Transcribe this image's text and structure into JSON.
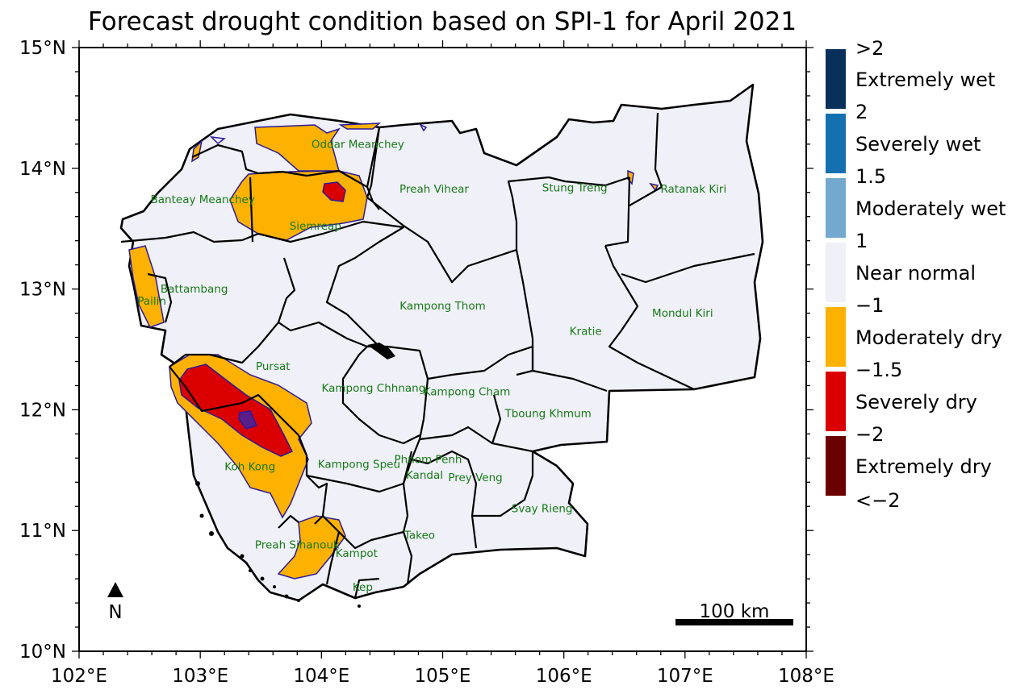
{
  "title": "Forecast drought condition based on SPI-1 for April 2021",
  "map": {
    "lon_range": [
      102,
      108
    ],
    "lat_range": [
      10,
      15
    ],
    "x_ticks": [
      "102°E",
      "103°E",
      "104°E",
      "105°E",
      "106°E",
      "107°E",
      "108°E"
    ],
    "y_ticks": [
      "10°N",
      "11°N",
      "12°N",
      "13°N",
      "14°N",
      "15°N"
    ],
    "north_label": "N",
    "scale_label": "100 km"
  },
  "provinces": [
    {
      "name": "Oddar Meanchey",
      "lon": 104.3,
      "lat": 14.17
    },
    {
      "name": "Banteay Meanchey",
      "lon": 103.02,
      "lat": 13.71
    },
    {
      "name": "Preah Vihear",
      "lon": 104.93,
      "lat": 13.8
    },
    {
      "name": "Stung Treng",
      "lon": 106.09,
      "lat": 13.81
    },
    {
      "name": "Ratanak Kiri",
      "lon": 107.07,
      "lat": 13.8
    },
    {
      "name": "Siemreap",
      "lon": 103.95,
      "lat": 13.49
    },
    {
      "name": "Battambang",
      "lon": 102.95,
      "lat": 12.97
    },
    {
      "name": "Pailin",
      "lon": 102.6,
      "lat": 12.87
    },
    {
      "name": "Kampong Thom",
      "lon": 105.0,
      "lat": 12.83
    },
    {
      "name": "Mondul Kiri",
      "lon": 106.98,
      "lat": 12.77
    },
    {
      "name": "Kratie",
      "lon": 106.18,
      "lat": 12.62
    },
    {
      "name": "Pursat",
      "lon": 103.6,
      "lat": 12.33
    },
    {
      "name": "Kampong Chhnang",
      "lon": 104.43,
      "lat": 12.15
    },
    {
      "name": "Kampong Cham",
      "lon": 105.2,
      "lat": 12.12
    },
    {
      "name": "Tboung Khmum",
      "lon": 105.87,
      "lat": 11.94
    },
    {
      "name": "Koh Kong",
      "lon": 103.41,
      "lat": 11.5
    },
    {
      "name": "Kampong Speu",
      "lon": 104.31,
      "lat": 11.52
    },
    {
      "name": "Phnom Penh",
      "lon": 104.88,
      "lat": 11.56
    },
    {
      "name": "Kandal",
      "lon": 104.85,
      "lat": 11.43
    },
    {
      "name": "Prey Veng",
      "lon": 105.27,
      "lat": 11.41
    },
    {
      "name": "Svay Rieng",
      "lon": 105.82,
      "lat": 11.15
    },
    {
      "name": "Takeo",
      "lon": 104.81,
      "lat": 10.93
    },
    {
      "name": "Preah Sihanouk",
      "lon": 103.8,
      "lat": 10.85
    },
    {
      "name": "Kampot",
      "lon": 104.29,
      "lat": 10.78
    },
    {
      "name": "Kep",
      "lon": 104.34,
      "lat": 10.5
    }
  ],
  "legend": {
    "bounds": [
      ">2",
      "2",
      "1.5",
      "1",
      "−1",
      "−1.5",
      "−2",
      "<−2"
    ],
    "classes": [
      {
        "name": "Extremely wet",
        "color": "#08305a"
      },
      {
        "name": "Severely wet",
        "color": "#1570b0"
      },
      {
        "name": "Moderately wet",
        "color": "#73a9cf"
      },
      {
        "name": "Near normal",
        "color": "#f0f0f8"
      },
      {
        "name": "Moderately dry",
        "color": "#fdb101"
      },
      {
        "name": "Severely dry",
        "color": "#db0000"
      },
      {
        "name": "Extremely dry",
        "color": "#6b0000"
      }
    ]
  },
  "colors": {
    "near_normal": "#f0f0f8",
    "moderately_dry": "#fdb101",
    "severely_dry": "#db0000",
    "extremely_dry": "#6b0000",
    "contour": "#2b1a9c",
    "province_label": "#157a15",
    "border": "#000000"
  }
}
